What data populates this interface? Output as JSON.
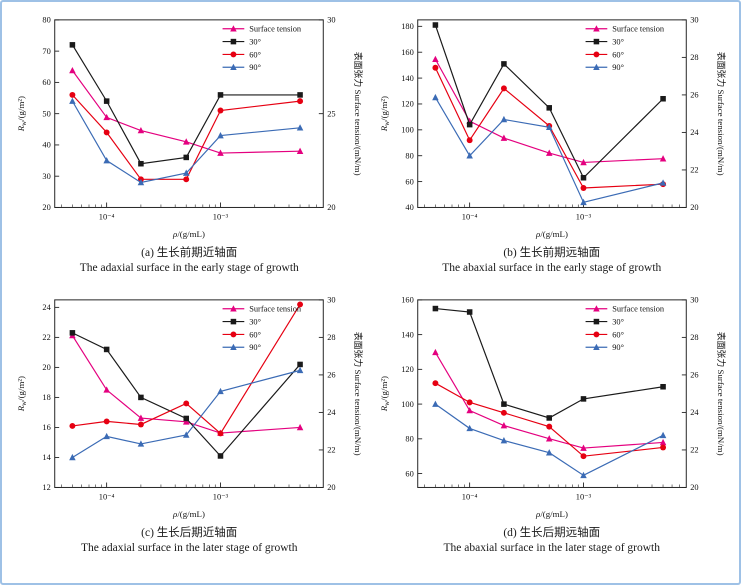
{
  "page": {
    "background": "#ffffff",
    "border_color": "#9ec1e6"
  },
  "chart_data": [
    {
      "id": "a",
      "type": "line",
      "caption_cn": "(a) 生长前期近轴面",
      "caption_en": "The adaxial surface in the early stage of growth",
      "xlabel": {
        "pre": "ρ",
        "post": "/(g/mL)"
      },
      "ylabel_left": {
        "pre": "R",
        "sub": "w",
        "post": "/(g/m²)"
      },
      "ylabel_right": "表面张力 Surface tension/(mN/m)",
      "x": [
        5e-05,
        0.0001,
        0.0002,
        0.0005,
        0.001,
        0.005
      ],
      "x_range": [
        3.5e-05,
        0.008
      ],
      "x_ticks": [
        0.0001,
        0.001
      ],
      "left_axis": {
        "min": 20,
        "max": 80,
        "ticks": [
          20,
          30,
          40,
          50,
          60,
          70,
          80
        ]
      },
      "right_axis": {
        "min": 20,
        "max": 30,
        "ticks": [
          20,
          25,
          30
        ]
      },
      "series": [
        {
          "name": "Surface tension",
          "axis": "right",
          "color": "#e4007f",
          "marker": "triangle",
          "values": [
            27.3,
            24.8,
            24.1,
            23.5,
            22.9,
            23.0
          ]
        },
        {
          "name": "30°",
          "axis": "left",
          "color": "#1a1a1a",
          "marker": "square",
          "values": [
            72,
            54,
            34,
            36,
            56,
            56
          ]
        },
        {
          "name": "60°",
          "axis": "left",
          "color": "#e60012",
          "marker": "circle",
          "values": [
            56,
            44,
            29,
            29,
            51,
            54
          ]
        },
        {
          "name": "90°",
          "axis": "left",
          "color": "#3b6bb5",
          "marker": "triangle",
          "values": [
            54,
            35,
            28,
            31,
            43,
            45.5
          ]
        }
      ]
    },
    {
      "id": "b",
      "type": "line",
      "caption_cn": "(b) 生长前期远轴面",
      "caption_en": "The abaxial surface in the early stage of growth",
      "xlabel": {
        "pre": "ρ",
        "post": "/(g/mL)"
      },
      "ylabel_left": {
        "pre": "R",
        "sub": "w",
        "post": "/(g/m²)"
      },
      "ylabel_right": "表面张力 Surface tension/(mN/m)",
      "x": [
        5e-05,
        0.0001,
        0.0002,
        0.0005,
        0.001,
        0.005
      ],
      "x_range": [
        3.5e-05,
        0.008
      ],
      "x_ticks": [
        0.0001,
        0.001
      ],
      "left_axis": {
        "min": 40,
        "max": 185,
        "ticks": [
          40,
          60,
          80,
          100,
          120,
          140,
          160,
          180
        ]
      },
      "right_axis": {
        "min": 20,
        "max": 30,
        "ticks": [
          20,
          22,
          24,
          26,
          28,
          30
        ]
      },
      "series": [
        {
          "name": "Surface tension",
          "axis": "right",
          "color": "#e4007f",
          "marker": "triangle",
          "values": [
            27.9,
            24.6,
            23.7,
            22.9,
            22.4,
            22.6
          ]
        },
        {
          "name": "30°",
          "axis": "left",
          "color": "#1a1a1a",
          "marker": "square",
          "values": [
            181,
            104,
            151,
            117,
            63,
            124
          ]
        },
        {
          "name": "60°",
          "axis": "left",
          "color": "#e60012",
          "marker": "circle",
          "values": [
            148,
            92,
            132,
            103,
            55,
            58
          ]
        },
        {
          "name": "90°",
          "axis": "left",
          "color": "#3b6bb5",
          "marker": "triangle",
          "values": [
            125,
            80,
            108,
            102,
            44,
            59
          ]
        }
      ]
    },
    {
      "id": "c",
      "type": "line",
      "caption_cn": "(c) 生长后期近轴面",
      "caption_en": "The adaxial surface in the later stage of growth",
      "xlabel": {
        "pre": "ρ",
        "post": "/(g/mL)"
      },
      "ylabel_left": {
        "pre": "R",
        "sub": "w",
        "post": "/(g/m²)"
      },
      "ylabel_right": "表面张力 Surface tension/(mN/m)",
      "x": [
        5e-05,
        0.0001,
        0.0002,
        0.0005,
        0.001,
        0.005
      ],
      "x_range": [
        3.5e-05,
        0.008
      ],
      "x_ticks": [
        0.0001,
        0.001
      ],
      "left_axis": {
        "min": 12,
        "max": 24.5,
        "ticks": [
          12,
          14,
          16,
          18,
          20,
          22,
          24
        ]
      },
      "right_axis": {
        "min": 20,
        "max": 30,
        "ticks": [
          20,
          22,
          24,
          26,
          28,
          30
        ]
      },
      "series": [
        {
          "name": "Surface tension",
          "axis": "right",
          "color": "#e4007f",
          "marker": "triangle",
          "values": [
            28.1,
            25.2,
            23.7,
            23.5,
            22.9,
            23.2
          ]
        },
        {
          "name": "30°",
          "axis": "left",
          "color": "#1a1a1a",
          "marker": "square",
          "values": [
            22.3,
            21.2,
            18.0,
            16.6,
            14.1,
            20.2
          ]
        },
        {
          "name": "60°",
          "axis": "left",
          "color": "#e60012",
          "marker": "circle",
          "values": [
            16.1,
            16.4,
            16.2,
            17.6,
            15.6,
            24.2
          ]
        },
        {
          "name": "90°",
          "axis": "left",
          "color": "#3b6bb5",
          "marker": "triangle",
          "values": [
            14.0,
            15.4,
            14.9,
            15.5,
            18.4,
            19.8
          ]
        }
      ]
    },
    {
      "id": "d",
      "type": "line",
      "caption_cn": "(d) 生长后期远轴面",
      "caption_en": "The abaxial surface in the later stage of growth",
      "xlabel": {
        "pre": "ρ",
        "post": "/(g/mL)"
      },
      "ylabel_left": {
        "pre": "R",
        "sub": "w",
        "post": "/(g/m²)"
      },
      "ylabel_right": "表面张力 Surface tension/(mN/m)",
      "x": [
        5e-05,
        0.0001,
        0.0002,
        0.0005,
        0.001,
        0.005
      ],
      "x_range": [
        3.5e-05,
        0.008
      ],
      "x_ticks": [
        0.0001,
        0.001
      ],
      "left_axis": {
        "min": 52,
        "max": 160,
        "ticks": [
          60,
          80,
          100,
          120,
          140,
          160
        ]
      },
      "right_axis": {
        "min": 20,
        "max": 30,
        "ticks": [
          20,
          22,
          24,
          26,
          28,
          30
        ]
      },
      "series": [
        {
          "name": "Surface tension",
          "axis": "right",
          "color": "#e4007f",
          "marker": "triangle",
          "values": [
            27.2,
            24.1,
            23.3,
            22.6,
            22.1,
            22.4
          ]
        },
        {
          "name": "30°",
          "axis": "left",
          "color": "#1a1a1a",
          "marker": "square",
          "values": [
            155,
            153,
            100,
            92,
            103,
            110
          ]
        },
        {
          "name": "60°",
          "axis": "left",
          "color": "#e60012",
          "marker": "circle",
          "values": [
            112,
            101,
            95,
            87,
            70,
            75
          ]
        },
        {
          "name": "90°",
          "axis": "left",
          "color": "#3b6bb5",
          "marker": "triangle",
          "values": [
            100,
            86,
            79,
            72,
            59,
            82
          ]
        }
      ]
    }
  ]
}
